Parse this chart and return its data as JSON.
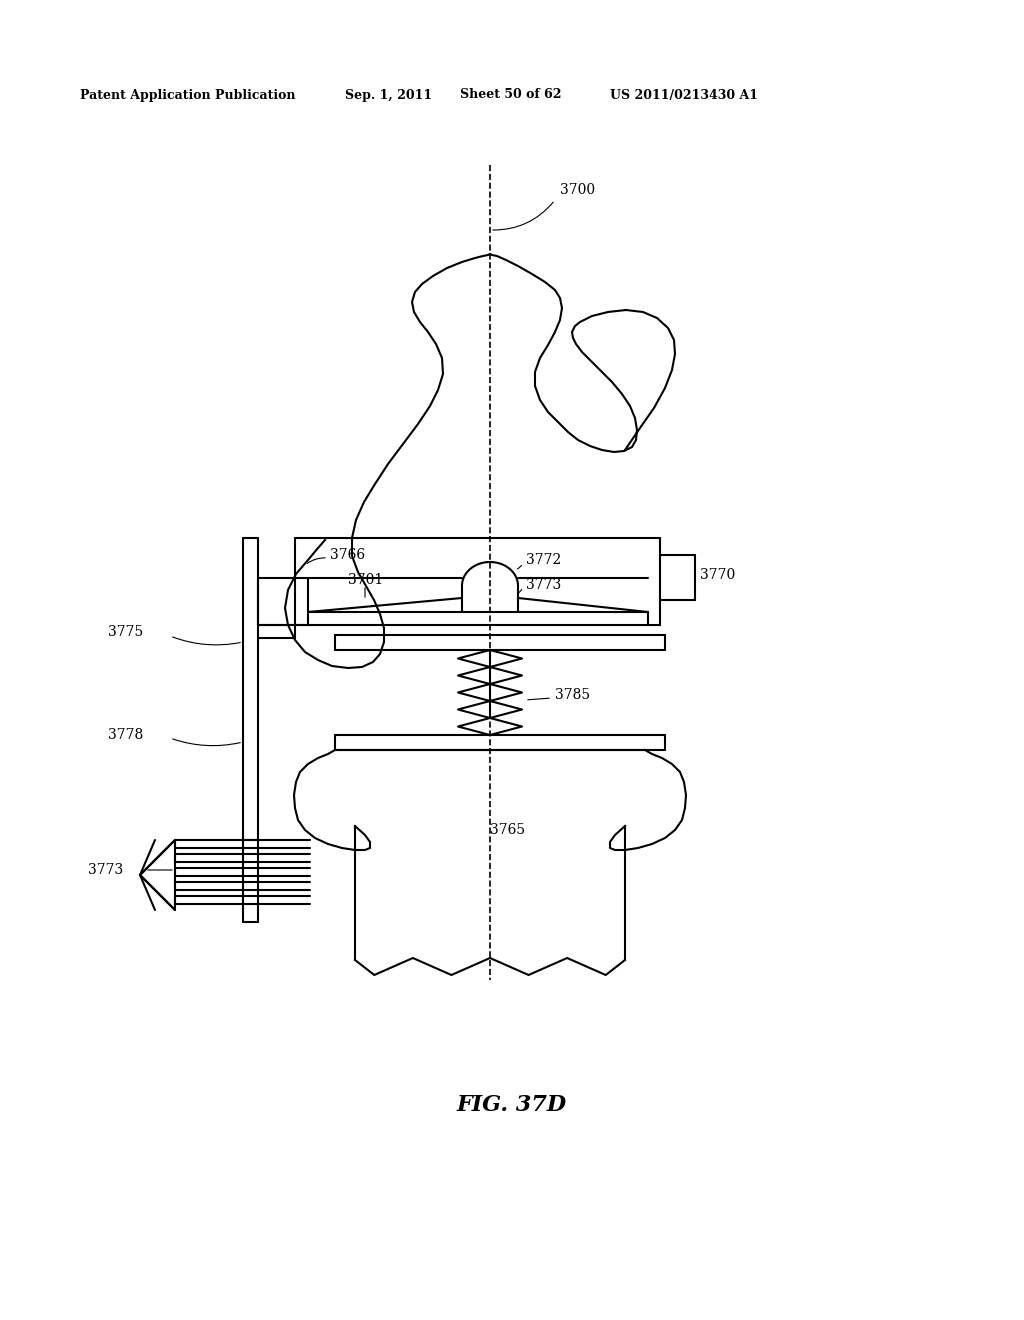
{
  "bg_color": "#ffffff",
  "line_color": "#000000",
  "header_text": "Patent Application Publication",
  "header_date": "Sep. 1, 2011",
  "header_sheet": "Sheet 50 of 62",
  "header_patent": "US 2011/0213430 A1",
  "fig_label": "FIG. 37D"
}
